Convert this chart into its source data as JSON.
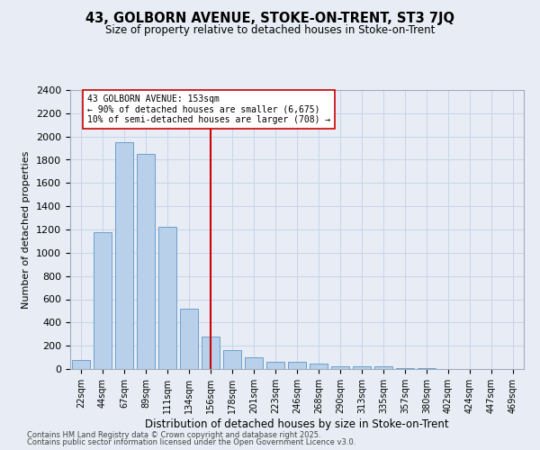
{
  "title1": "43, GOLBORN AVENUE, STOKE-ON-TRENT, ST3 7JQ",
  "title2": "Size of property relative to detached houses in Stoke-on-Trent",
  "xlabel": "Distribution of detached houses by size in Stoke-on-Trent",
  "ylabel": "Number of detached properties",
  "categories": [
    "22sqm",
    "44sqm",
    "67sqm",
    "89sqm",
    "111sqm",
    "134sqm",
    "156sqm",
    "178sqm",
    "201sqm",
    "223sqm",
    "246sqm",
    "268sqm",
    "290sqm",
    "313sqm",
    "335sqm",
    "357sqm",
    "380sqm",
    "402sqm",
    "424sqm",
    "447sqm",
    "469sqm"
  ],
  "values": [
    75,
    1175,
    1950,
    1850,
    1225,
    520,
    275,
    165,
    100,
    65,
    65,
    45,
    25,
    20,
    20,
    5,
    5,
    0,
    0,
    0,
    0
  ],
  "bar_color": "#b8d0ea",
  "bar_edge_color": "#6aa0cc",
  "vline_x_index": 6,
  "vline_color": "#cc0000",
  "annotation_text": "43 GOLBORN AVENUE: 153sqm\n← 90% of detached houses are smaller (6,675)\n10% of semi-detached houses are larger (708) →",
  "annotation_box_color": "#ffffff",
  "annotation_box_edge": "#cc0000",
  "ylim": [
    0,
    2400
  ],
  "yticks": [
    0,
    200,
    400,
    600,
    800,
    1000,
    1200,
    1400,
    1600,
    1800,
    2000,
    2200,
    2400
  ],
  "grid_color": "#c8d4e8",
  "bg_color": "#e8edf5",
  "footer1": "Contains HM Land Registry data © Crown copyright and database right 2025.",
  "footer2": "Contains public sector information licensed under the Open Government Licence v3.0."
}
